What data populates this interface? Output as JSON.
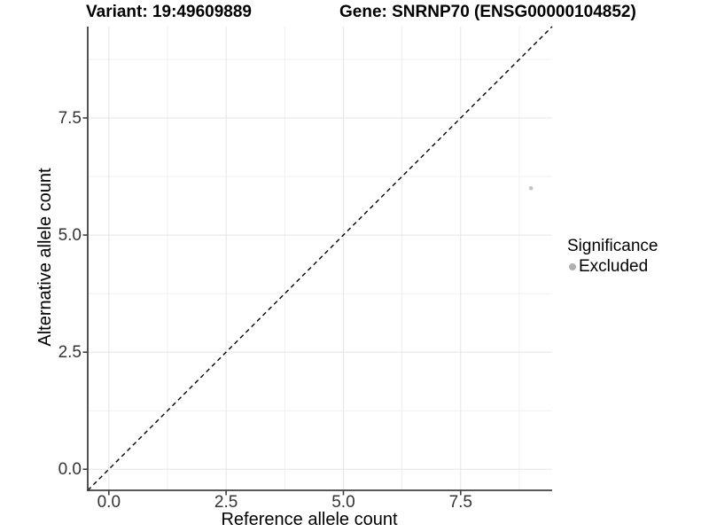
{
  "header": {
    "title_left": "Variant: 19:49609889",
    "title_right": "Gene: SNRNP70 (ENSG00000104852)"
  },
  "chart_data": {
    "type": "scatter",
    "title": "Variant: 19:49609889   Gene: SNRNP70 (ENSG00000104852)",
    "xlabel": "Reference allele count",
    "ylabel": "Alternative allele count",
    "xlim": [
      -0.45,
      9.45
    ],
    "ylim": [
      -0.45,
      9.45
    ],
    "xticks": {
      "values": [
        0,
        2.5,
        5,
        7.5
      ],
      "labels": [
        "0.0",
        "2.5",
        "5.0",
        "7.5"
      ]
    },
    "yticks": {
      "values": [
        0,
        2.5,
        5,
        7.5
      ],
      "labels": [
        "0.0",
        "2.5",
        "5.0",
        "7.5"
      ]
    },
    "minor_xticks": [
      1.25,
      3.75,
      6.25,
      8.75
    ],
    "minor_yticks": [
      1.25,
      3.75,
      6.25,
      8.75
    ],
    "grid": "major and minor gridlines on white panel",
    "reference_line": {
      "kind": "identity y=x",
      "style": "dashed",
      "color": "#000000"
    },
    "series": [
      {
        "name": "Excluded",
        "marker": "circle",
        "color": "#c4c4c4",
        "point_radius": 2.3,
        "points": [
          {
            "x": 9,
            "y": 6
          }
        ]
      }
    ],
    "legend": {
      "title": "Significance",
      "position": "right",
      "items": [
        {
          "label": "Excluded",
          "marker": "circle",
          "color": "#b0b0b0"
        }
      ]
    }
  },
  "colors": {
    "background": "#ffffff",
    "axis_line": "#404040",
    "grid_major": "#e5e5e5",
    "grid_minor": "#f0f0f0",
    "tick_text": "#333333",
    "title_text": "#000000",
    "point": "#c4c4c4",
    "legend_marker": "#b0b0b0"
  }
}
